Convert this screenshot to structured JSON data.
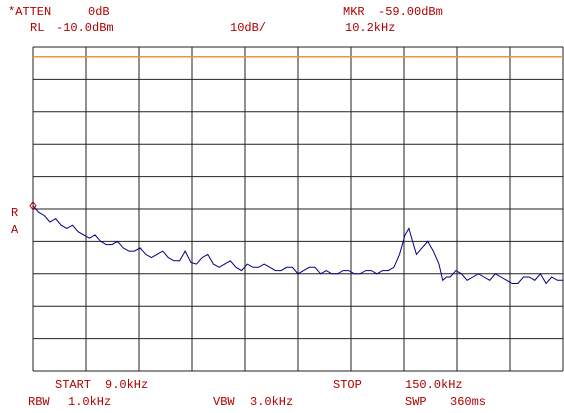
{
  "chart_data": {
    "type": "line",
    "atten_label": "*ATTEN",
    "atten": "0dB",
    "rl_label": "RL",
    "rl": "-10.0dBm",
    "scale": "10dB/",
    "mkr_label": "MKR",
    "mkr_level": "-59.00dBm",
    "mkr_freq": "10.2kHz",
    "side_labels": [
      "R",
      "A"
    ],
    "start_label": "START",
    "start": "9.0kHz",
    "stop_label": "STOP",
    "stop": "150.0kHz",
    "rbw_label": "RBW",
    "rbw": "1.0kHz",
    "vbw_label": "VBW",
    "vbw": "3.0kHz",
    "swp_label": "SWP",
    "swp": "360ms",
    "xlim": [
      9,
      150
    ],
    "ylim": [
      -110,
      -10
    ],
    "display_line": {
      "value": -13,
      "color": "#e09a3a"
    },
    "x": [
      9,
      10.5,
      12,
      13.5,
      15,
      16.5,
      18,
      19.5,
      21,
      22.5,
      24,
      25.5,
      27,
      28.5,
      30,
      31.5,
      33,
      34.5,
      36,
      37.5,
      39,
      40.5,
      42,
      43.5,
      45,
      46.5,
      48,
      49.5,
      51,
      52.5,
      54,
      55.5,
      57,
      58.5,
      60,
      61.5,
      63,
      64.5,
      66,
      67.5,
      69,
      70.5,
      72,
      73.5,
      75,
      76.5,
      78,
      79.5,
      81,
      82.5,
      84,
      85.5,
      87,
      88.5,
      90,
      91.5,
      93,
      94.5,
      96,
      97.5,
      99,
      100.5,
      102,
      103.5,
      105,
      106.5,
      108,
      109,
      110,
      111,
      112.5,
      114,
      115.5,
      117,
      118,
      119,
      120,
      121.5,
      123,
      124.5,
      126,
      127.5,
      129,
      130.5,
      132,
      133.5,
      135,
      136.5,
      138,
      139.5,
      141,
      142.5,
      144,
      145.5,
      147,
      148.5,
      150
    ],
    "series": [
      {
        "color": "#000080",
        "values": [
          -59,
          -61,
          -62,
          -64,
          -63,
          -65,
          -66,
          -65,
          -67,
          -68,
          -69,
          -68,
          -70,
          -71,
          -71,
          -70,
          -72,
          -73,
          -73,
          -72,
          -74,
          -75,
          -74,
          -73,
          -75,
          -76,
          -76,
          -73,
          -76.5,
          -77,
          -75,
          -74,
          -77,
          -78,
          -77,
          -76,
          -78,
          -79,
          -77,
          -78,
          -78,
          -77,
          -78,
          -79,
          -79,
          -78,
          -78,
          -80,
          -79,
          -78,
          -78,
          -80,
          -79,
          -80,
          -80,
          -79,
          -79,
          -80,
          -80,
          -79,
          -79,
          -80,
          -79,
          -79,
          -78,
          -74,
          -68,
          -66,
          -70,
          -74,
          -72,
          -70,
          -73,
          -77,
          -82,
          -81,
          -81,
          -79,
          -80,
          -82,
          -81,
          -80,
          -81,
          -82,
          -80,
          -81,
          -82,
          -83,
          -83,
          -81,
          -81,
          -82,
          -80,
          -83,
          -81,
          -82,
          -82
        ]
      }
    ]
  }
}
